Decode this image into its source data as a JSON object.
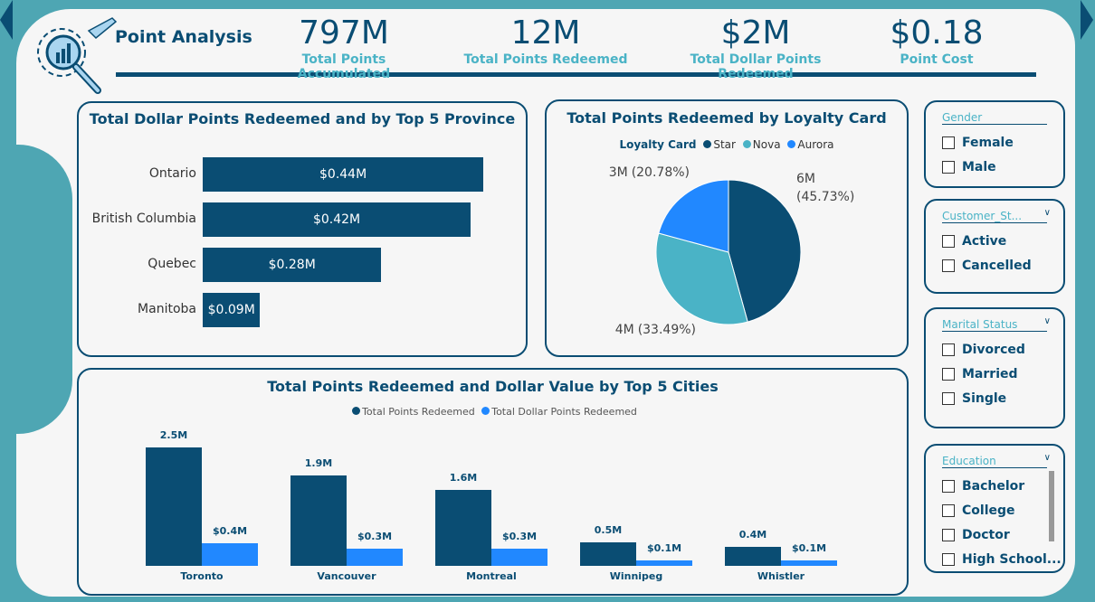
{
  "header": {
    "title": "Point Analysis"
  },
  "kpis": [
    {
      "value": "797M",
      "label": "Total Points Accumulated"
    },
    {
      "value": "12M",
      "label": "Total Points Redeemed"
    },
    {
      "value": "$2M",
      "label": "Total Dollar Points Redeemed"
    },
    {
      "value": "$0.18",
      "label": "Point Cost"
    }
  ],
  "colors": {
    "dark": "#0a4d73",
    "teal": "#4ab3c6",
    "blue": "#2188ff"
  },
  "chart_data": [
    {
      "type": "bar",
      "orientation": "horizontal",
      "title": "Total Dollar Points Redeemed and by Top 5 Province",
      "categories": [
        "Ontario",
        "British Columbia",
        "Quebec",
        "Manitoba"
      ],
      "values": [
        0.44,
        0.42,
        0.28,
        0.09
      ],
      "labels": [
        "$0.44M",
        "$0.42M",
        "$0.28M",
        "$0.09M"
      ]
    },
    {
      "type": "pie",
      "title": "Total Points Redeemed by Loyalty Card",
      "legend_title": "Loyalty Card",
      "categories": [
        "Star",
        "Nova",
        "Aurora"
      ],
      "values": [
        45.73,
        33.49,
        20.78
      ],
      "labels": [
        "6M",
        "4M",
        "3M"
      ],
      "label_pcts": [
        "(45.73%)",
        "(33.49%)",
        "(20.78%)"
      ],
      "legend": "top"
    },
    {
      "type": "bar",
      "title": "Total Points Redeemed and Dollar Value by Top 5 Cities",
      "categories": [
        "Toronto",
        "Vancouver",
        "Montreal",
        "Winnipeg",
        "Whistler"
      ],
      "series": [
        {
          "name": "Total Points Redeemed",
          "values": [
            2.5,
            1.9,
            1.6,
            0.5,
            0.4
          ],
          "labels": [
            "2.5M",
            "1.9M",
            "1.6M",
            "0.5M",
            "0.4M"
          ]
        },
        {
          "name": "Total Dollar Points Redeemed",
          "values": [
            0.4,
            0.3,
            0.3,
            0.1,
            0.1
          ],
          "labels": [
            "$0.4M",
            "$0.3M",
            "$0.3M",
            "$0.1M",
            "$0.1M"
          ]
        }
      ],
      "legend": "top"
    }
  ],
  "slicers": [
    {
      "title": "Gender",
      "options": [
        "Female",
        "Male"
      ]
    },
    {
      "title": "Customer_St...",
      "options": [
        "Active",
        "Cancelled"
      ]
    },
    {
      "title": "Marital Status",
      "options": [
        "Divorced",
        "Married",
        "Single"
      ]
    },
    {
      "title": "Education",
      "options": [
        "Bachelor",
        "College",
        "Doctor",
        "High School..."
      ]
    }
  ]
}
